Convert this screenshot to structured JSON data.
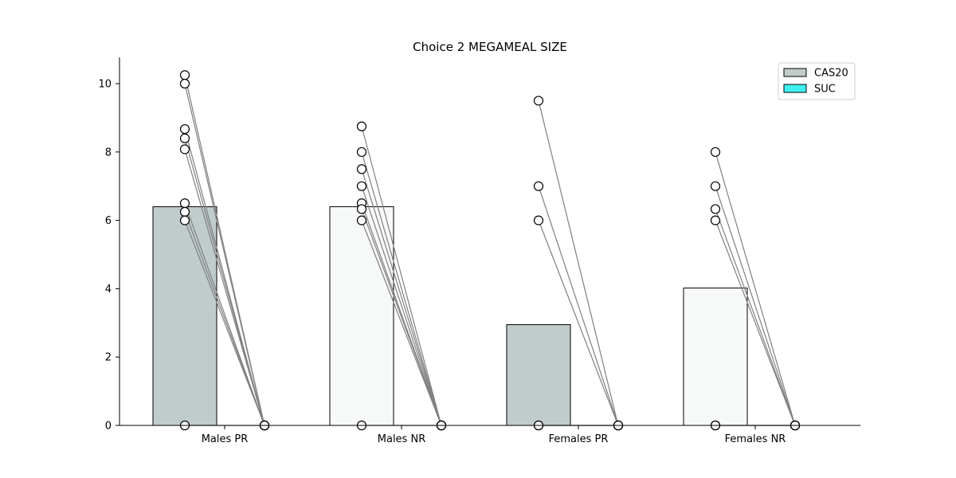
{
  "chart_data": {
    "type": "bar",
    "title": "Choice  2 MEGAMEAL SIZE",
    "xlabel": "",
    "ylabel": "",
    "ylim": [
      0,
      10.8
    ],
    "yticks": [
      0,
      2,
      4,
      6,
      8,
      10
    ],
    "grid": false,
    "legend_position": "top-right",
    "categories": [
      "Males PR",
      "Males NR",
      "Females PR",
      "Females NR"
    ],
    "legend": [
      {
        "name": "CAS20",
        "color": "#bfcccb"
      },
      {
        "name": "SUC",
        "color": "#40f0f0"
      }
    ],
    "series": [
      {
        "name": "CAS20",
        "values": [
          6.4,
          6.4,
          2.95,
          4.02
        ]
      },
      {
        "name": "SUC",
        "values": [
          0,
          0,
          0,
          0
        ]
      }
    ],
    "bar_colors": {
      "CAS20": [
        "#bfcccb",
        "#f7f9f8",
        "#bfcccb",
        "#f7f9f8"
      ],
      "SUC": [
        "#bfcccb",
        "#f7f9f8",
        "#bfcccb",
        "#f7f9f8"
      ]
    },
    "paired_points": [
      {
        "group": "Males PR",
        "cas20": [
          10.25,
          10.0,
          8.67,
          8.4,
          8.08,
          6.5,
          6.25,
          6.0,
          0
        ],
        "suc": [
          0,
          0,
          0,
          0,
          0,
          0,
          0,
          0,
          0
        ]
      },
      {
        "group": "Males NR",
        "cas20": [
          8.75,
          8.0,
          7.5,
          7.0,
          6.5,
          6.33,
          6.0,
          0
        ],
        "suc": [
          0,
          0,
          0,
          0,
          0,
          0,
          0,
          0
        ]
      },
      {
        "group": "Females PR",
        "cas20": [
          9.5,
          7.0,
          6.0,
          0,
          0
        ],
        "suc": [
          0,
          0,
          0,
          0,
          0
        ]
      },
      {
        "group": "Females NR",
        "cas20": [
          8.0,
          7.0,
          6.33,
          6.0,
          0,
          0
        ],
        "suc": [
          0,
          0,
          0,
          0,
          0,
          0
        ]
      }
    ],
    "colors": {
      "line": "#808080",
      "marker_face": "#ffffff",
      "marker_edge": "#000000",
      "axis": "#000000"
    }
  }
}
